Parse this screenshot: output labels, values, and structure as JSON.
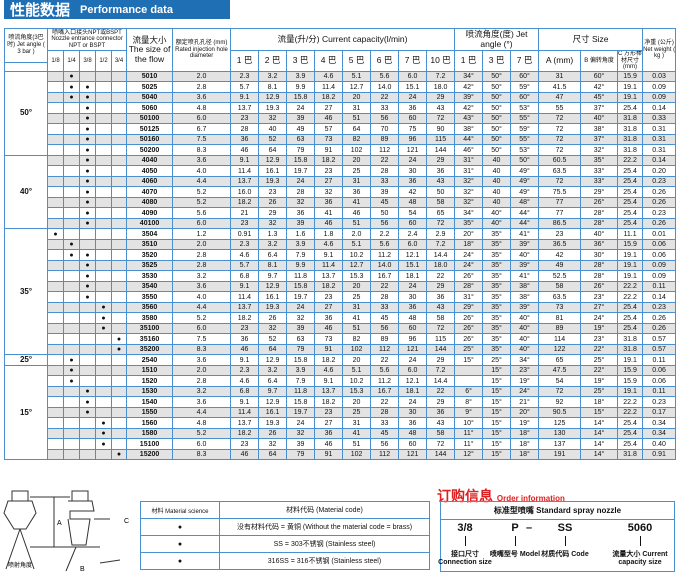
{
  "title": {
    "cn": "性能数据",
    "en": "Performance data"
  },
  "header": {
    "angle": "喷流角度(3巴时) Jet angle ( 3 bar )",
    "inlet": "喷嘴入口接头NPT或BSPT Nozzle entrance connector NPT or BSPT",
    "inlet_sizes": [
      "1/8",
      "1/4",
      "3/8",
      "1/2",
      "3/4"
    ],
    "size": "流量大小 The size of the flow",
    "diameter": "额定喷孔孔径 (mm) Rated injection hole diameter",
    "capacity": "流量(升/分) Current capacity(l/min)",
    "pressures": [
      "1 巴",
      "2 巴",
      "3 巴",
      "4 巴",
      "5 巴",
      "6 巴",
      "7 巴",
      "10 巴"
    ],
    "jet": "喷流角度(度) Jet angle (°)",
    "jet_pressures": [
      "1 巴",
      "3 巴",
      "7 巴"
    ],
    "dim": "尺寸 Size",
    "a": "A (mm)",
    "b": "B 偏转角度",
    "c": "C 方形棒材尺寸(mm)",
    "weight": "净重 (公斤) Net weight ( kg )"
  },
  "groups": [
    {
      "angle": "50°",
      "rows": [
        [
          "5010",
          "01000",
          "2.0",
          "2.3",
          "3.2",
          "3.9",
          "4.6",
          "5.1",
          "5.6",
          "6.0",
          "7.2",
          "34°",
          "50°",
          "60°",
          "31",
          "60°",
          "15.9",
          "0.03"
        ],
        [
          "5025",
          "01100",
          "2.8",
          "5.7",
          "8.1",
          "9.9",
          "11.4",
          "12.7",
          "14.0",
          "15.1",
          "18.0",
          "42°",
          "50°",
          "59°",
          "41.5",
          "42°",
          "19.1",
          "0.09"
        ],
        [
          "5040",
          "01100",
          "3.6",
          "9.1",
          "12.9",
          "15.8",
          "18.2",
          "20",
          "22",
          "24",
          "29",
          "39°",
          "50°",
          "60°",
          "47",
          "45°",
          "19.1",
          "0.09"
        ],
        [
          "5060",
          "00100",
          "4.8",
          "13.7",
          "19.3",
          "24",
          "27",
          "31",
          "33",
          "36",
          "43",
          "42°",
          "50°",
          "53°",
          "55",
          "37°",
          "25.4",
          "0.14"
        ],
        [
          "50100",
          "00100",
          "6.0",
          "23",
          "32",
          "39",
          "46",
          "51",
          "56",
          "60",
          "72",
          "43°",
          "50°",
          "55°",
          "72",
          "40°",
          "31.8",
          "0.33"
        ],
        [
          "50125",
          "00100",
          "6.7",
          "28",
          "40",
          "49",
          "57",
          "64",
          "70",
          "75",
          "90",
          "38°",
          "50°",
          "59°",
          "72",
          "38°",
          "31.8",
          "0.31"
        ],
        [
          "50160",
          "00100",
          "7.5",
          "36",
          "52",
          "63",
          "73",
          "82",
          "89",
          "96",
          "115",
          "44°",
          "50°",
          "55°",
          "72",
          "37°",
          "31.8",
          "0.31"
        ],
        [
          "50200",
          "00100",
          "8.3",
          "46",
          "64",
          "79",
          "91",
          "102",
          "112",
          "121",
          "144",
          "46°",
          "50°",
          "53°",
          "72",
          "32°",
          "31.8",
          "0.31"
        ]
      ]
    },
    {
      "angle": "40°",
      "rows": [
        [
          "4040",
          "00100",
          "3.6",
          "9.1",
          "12.9",
          "15.8",
          "18.2",
          "20",
          "22",
          "24",
          "29",
          "31°",
          "40",
          "50°",
          "60.5",
          "35°",
          "22.2",
          "0.14"
        ],
        [
          "4050",
          "00100",
          "4.0",
          "11.4",
          "16.1",
          "19.7",
          "23",
          "25",
          "28",
          "30",
          "36",
          "31°",
          "40",
          "49°",
          "63.5",
          "33°",
          "25.4",
          "0.20"
        ],
        [
          "4060",
          "00100",
          "4.4",
          "13.7",
          "19.3",
          "24",
          "27",
          "31",
          "33",
          "36",
          "43",
          "32°",
          "40",
          "49°",
          "72",
          "33°",
          "25.4",
          "0.23"
        ],
        [
          "4070",
          "00100",
          "5.2",
          "16.0",
          "23",
          "28",
          "32",
          "36",
          "39",
          "42",
          "50",
          "32°",
          "40",
          "49°",
          "75.5",
          "29°",
          "25.4",
          "0.26"
        ],
        [
          "4080",
          "00100",
          "5.2",
          "18.2",
          "26",
          "32",
          "36",
          "41",
          "45",
          "48",
          "58",
          "32°",
          "40",
          "48°",
          "77",
          "26°",
          "25.4",
          "0.26"
        ],
        [
          "4090",
          "00100",
          "5.6",
          "21",
          "29",
          "36",
          "41",
          "46",
          "50",
          "54",
          "65",
          "34°",
          "40°",
          "44°",
          "77",
          "28°",
          "25.4",
          "0.23"
        ],
        [
          "40100",
          "00100",
          "6.0",
          "23",
          "32",
          "39",
          "46",
          "51",
          "56",
          "60",
          "72",
          "35°",
          "40°",
          "44°",
          "86.5",
          "28°",
          "25.4",
          "0.26"
        ]
      ]
    },
    {
      "angle": "35°",
      "rows": [
        [
          "3504",
          "10000",
          "1.2",
          "0.91",
          "1.3",
          "1.6",
          "1.8",
          "2.0",
          "2.2",
          "2.4",
          "2.9",
          "20°",
          "35°",
          "41°",
          "23",
          "40°",
          "11.1",
          "0.01"
        ],
        [
          "3510",
          "01000",
          "2.0",
          "2.3",
          "3.2",
          "3.9",
          "4.6",
          "5.1",
          "5.6",
          "6.0",
          "7.2",
          "18°",
          "35°",
          "39°",
          "36.5",
          "36°",
          "15.9",
          "0.06"
        ],
        [
          "3520",
          "01100",
          "2.8",
          "4.6",
          "6.4",
          "7.9",
          "9.1",
          "10.2",
          "11.2",
          "12.1",
          "14.4",
          "24°",
          "35°",
          "40°",
          "42",
          "30°",
          "19.1",
          "0.06"
        ],
        [
          "3525",
          "00100",
          "2.8",
          "5.7",
          "8.1",
          "9.9",
          "11.4",
          "12.7",
          "14.0",
          "15.1",
          "18.0",
          "24°",
          "35°",
          "39°",
          "49",
          "28°",
          "19.1",
          "0.09"
        ],
        [
          "3530",
          "00100",
          "3.2",
          "6.8",
          "9.7",
          "11.8",
          "13.7",
          "15.3",
          "16.7",
          "18.1",
          "22",
          "26°",
          "35°",
          "41°",
          "52.5",
          "28°",
          "19.1",
          "0.09"
        ],
        [
          "3540",
          "00100",
          "3.6",
          "9.1",
          "12.9",
          "15.8",
          "18.2",
          "20",
          "22",
          "24",
          "29",
          "28°",
          "35°",
          "38°",
          "58",
          "26°",
          "22.2",
          "0.11"
        ],
        [
          "3550",
          "00100",
          "4.0",
          "11.4",
          "16.1",
          "19.7",
          "23",
          "25",
          "28",
          "30",
          "36",
          "31°",
          "35°",
          "38°",
          "63.5",
          "23°",
          "22.2",
          "0.14"
        ],
        [
          "3560",
          "00010",
          "4.4",
          "13.7",
          "19.3",
          "24",
          "27",
          "31",
          "33",
          "36",
          "43",
          "29°",
          "35°",
          "39°",
          "73",
          "27°",
          "25.4",
          "0.23"
        ],
        [
          "3580",
          "00010",
          "5.2",
          "18.2",
          "26",
          "32",
          "36",
          "41",
          "45",
          "48",
          "58",
          "26°",
          "35°",
          "40°",
          "81",
          "24°",
          "25.4",
          "0.26"
        ],
        [
          "35100",
          "00010",
          "6.0",
          "23",
          "32",
          "39",
          "46",
          "51",
          "56",
          "60",
          "72",
          "26°",
          "35°",
          "40°",
          "89",
          "19°",
          "25.4",
          "0.26"
        ],
        [
          "35160",
          "00001",
          "7.5",
          "36",
          "52",
          "63",
          "73",
          "82",
          "89",
          "96",
          "115",
          "26°",
          "35°",
          "40°",
          "114",
          "23°",
          "31.8",
          "0.57"
        ],
        [
          "35200",
          "00001",
          "8.3",
          "46",
          "64",
          "79",
          "91",
          "102",
          "112",
          "121",
          "144",
          "25°",
          "35°",
          "40°",
          "122",
          "22°",
          "31.8",
          "0.57"
        ]
      ]
    },
    {
      "angle": "25°",
      "rows": [
        [
          "2540",
          "01000",
          "3.6",
          "9.1",
          "12.9",
          "15.8",
          "18.2",
          "20",
          "22",
          "24",
          "29",
          "15°",
          "25°",
          "34°",
          "65",
          "25°",
          "19.1",
          "0.11"
        ]
      ]
    },
    {
      "angle": "15°",
      "rows": [
        [
          "1510",
          "01000",
          "2.0",
          "2.3",
          "3.2",
          "3.9",
          "4.6",
          "5.1",
          "5.6",
          "6.0",
          "7.2",
          "",
          "15°",
          "23°",
          "47.5",
          "22°",
          "15.9",
          "0.06"
        ],
        [
          "1520",
          "01000",
          "2.8",
          "4.6",
          "6.4",
          "7.9",
          "9.1",
          "10.2",
          "11.2",
          "12.1",
          "14.4",
          "",
          "15°",
          "19°",
          "54",
          "19°",
          "15.9",
          "0.06"
        ],
        [
          "1530",
          "00100",
          "3.2",
          "6.8",
          "9.7",
          "11.8",
          "13.7",
          "15.3",
          "16.7",
          "18.1",
          "22",
          "6°",
          "15°",
          "24°",
          "72",
          "25°",
          "19.1",
          "0.11"
        ],
        [
          "1540",
          "00100",
          "3.6",
          "9.1",
          "12.9",
          "15.8",
          "18.2",
          "20",
          "22",
          "24",
          "29",
          "8°",
          "15°",
          "21°",
          "92",
          "18°",
          "22.2",
          "0.23"
        ],
        [
          "1550",
          "00100",
          "4.4",
          "11.4",
          "16.1",
          "19.7",
          "23",
          "25",
          "28",
          "30",
          "36",
          "9°",
          "15°",
          "20°",
          "90.5",
          "15°",
          "22.2",
          "0.17"
        ],
        [
          "1560",
          "00010",
          "4.8",
          "13.7",
          "19.3",
          "24",
          "27",
          "31",
          "33",
          "36",
          "43",
          "10°",
          "15°",
          "19°",
          "125",
          "14°",
          "25.4",
          "0.34"
        ],
        [
          "1580",
          "00010",
          "5.2",
          "18.2",
          "26",
          "32",
          "36",
          "41",
          "45",
          "48",
          "58",
          "11°",
          "15°",
          "18°",
          "130",
          "14°",
          "25.4",
          "0.34"
        ],
        [
          "15100",
          "00010",
          "6.0",
          "23",
          "32",
          "39",
          "46",
          "51",
          "56",
          "60",
          "72",
          "11°",
          "15°",
          "18°",
          "137",
          "14°",
          "25.4",
          "0.40"
        ],
        [
          "15200",
          "00001",
          "8.3",
          "46",
          "64",
          "79",
          "91",
          "102",
          "112",
          "121",
          "144",
          "12°",
          "15°",
          "18°",
          "191",
          "14°",
          "31.8",
          "0.91"
        ]
      ]
    }
  ],
  "dot": "●",
  "diagram": {
    "a": "A",
    "b": "B",
    "c": "C",
    "spray": "喷射角度"
  },
  "material": {
    "h1": "材料 Material science",
    "h2": "材料代码 (Material code)",
    "rows": [
      "没有材料代码 = 黄铜 (Without the material code = brass)",
      "SS = 303不锈钢 (Stainless steel)",
      "316SS = 316不锈钢 (Stainless steel)"
    ]
  },
  "order": {
    "title_cn": "订购信息",
    "title_en": "Order information",
    "header": "标准型喷嘴 Standard spray nozzle",
    "parts": [
      {
        "code": "3/8",
        "label": "接口尺寸 Connection size"
      },
      {
        "code": "P",
        "label": "喷嘴型号 Model"
      },
      {
        "code": "SS",
        "label": "材质代码 Code"
      },
      {
        "code": "5060",
        "label": "流量大小 Current capacity size"
      }
    ],
    "dash": "–"
  }
}
